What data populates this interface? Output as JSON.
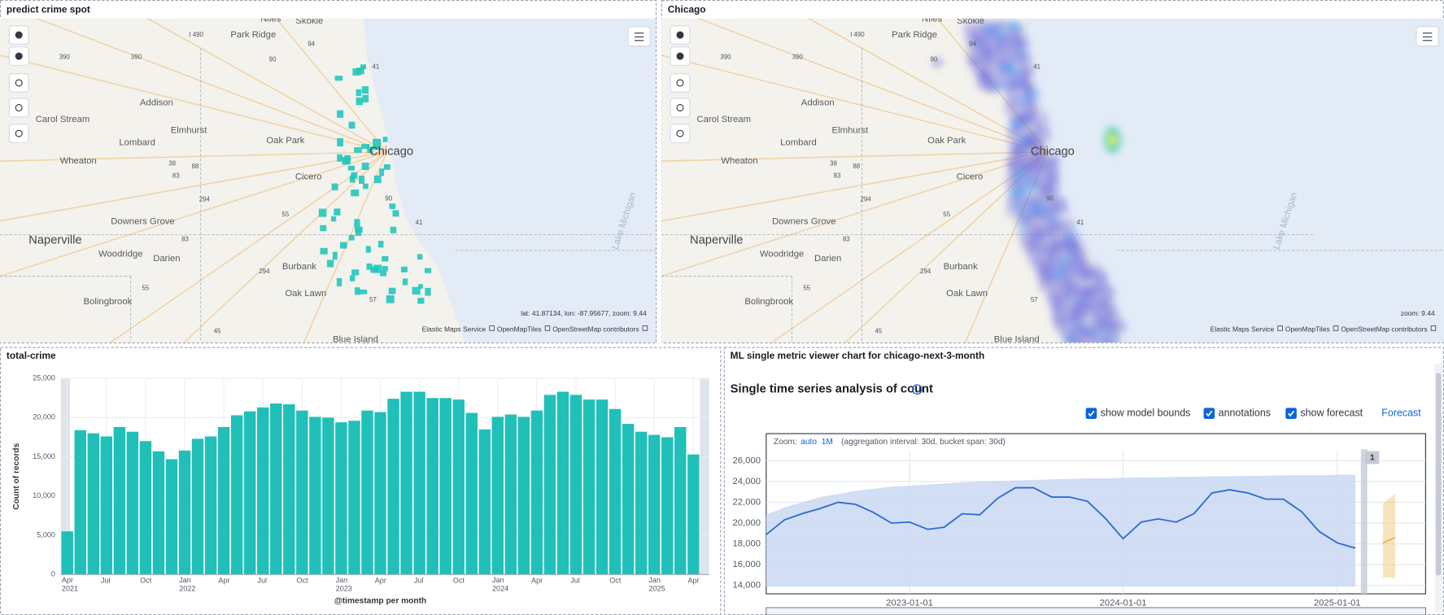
{
  "panels": {
    "map1": {
      "title": "predict crime spot",
      "status": "lat: 41.87134, lon: -87.95677, zoom: 9.44"
    },
    "map2": {
      "title": "Chicago",
      "status": "zoom: 9.44"
    },
    "bar_panel": {
      "title": "total-crime"
    },
    "ml_panel": {
      "title": "ML single metric viewer chart for chicago-next-3-month",
      "heading": "Single time series analysis of count",
      "checkboxes": [
        "show model bounds",
        "annotations",
        "show forecast"
      ],
      "forecast_button": "Forecast",
      "zoom_label": "Zoom:",
      "zoom_options": [
        "auto",
        "1M"
      ],
      "interval_note": "(aggregation interval: 30d, bucket span: 30d)"
    }
  },
  "map": {
    "labels": [
      "Niles",
      "Skokie",
      "I 490",
      "Park Ridge",
      "94",
      "390",
      "390",
      "90",
      "41",
      "Addison",
      "Carol Stream",
      "Elmhurst",
      "Lombard",
      "Oak Park",
      "Chicago",
      "Wheaton",
      "38",
      "88",
      "Cicero",
      "83",
      "294",
      "90",
      "55",
      "Downers Grove",
      "41",
      "Naperville",
      "Woodridge",
      "Darien",
      "83",
      "Burbank",
      "294",
      "Lake Michigan",
      "55",
      "Oak Lawn",
      "Bolingbrook",
      "57",
      "45",
      "Blue Island"
    ],
    "attribution": [
      "Elastic Maps Service",
      "OpenMapTiles",
      "OpenStreetMap contributors"
    ]
  },
  "chart_data": [
    {
      "type": "bar",
      "x_label": "@timestamp per month",
      "y_label": "Count of records",
      "color": "#20c0b8",
      "grid": true,
      "categories": [
        "Apr 2021",
        null,
        null,
        "Jul",
        null,
        null,
        "Oct",
        null,
        null,
        "Jan 2022",
        null,
        null,
        "Apr",
        null,
        null,
        "Jul",
        null,
        null,
        "Oct",
        null,
        null,
        "Jan 2023",
        null,
        null,
        "Apr",
        null,
        null,
        "Jul",
        null,
        null,
        "Oct",
        null,
        null,
        "Jan 2024",
        null,
        null,
        "Apr",
        null,
        null,
        "Jul",
        null,
        null,
        "Oct",
        null,
        null,
        "Jan 2025",
        null,
        null,
        "Apr"
      ],
      "values": [
        5500,
        18400,
        18000,
        17600,
        18800,
        18200,
        17000,
        15700,
        14700,
        15800,
        17300,
        17600,
        18800,
        20300,
        20800,
        21300,
        21800,
        21700,
        20900,
        20100,
        20000,
        19400,
        19600,
        20900,
        20700,
        22400,
        23300,
        23300,
        22500,
        22500,
        22300,
        20600,
        18500,
        20100,
        20400,
        20100,
        20900,
        22900,
        23300,
        22900,
        22300,
        22300,
        21100,
        19200,
        18200,
        17800,
        17500,
        18800,
        15300
      ],
      "ylim": [
        0,
        25000
      ],
      "yticks": [
        0,
        {
          "value": 5000,
          "label": "5,000"
        },
        {
          "value": 10000,
          "label": "10,000"
        },
        {
          "value": 15000,
          "label": "15,000"
        },
        {
          "value": 20000,
          "label": "20,000"
        },
        {
          "value": 25000,
          "label": "25,000"
        }
      ]
    },
    {
      "type": "line",
      "color": "#2f6bd1",
      "band_color": "#c9d8f2",
      "grid": true,
      "x": [
        "2022-05-01",
        "2022-06-01",
        "2022-07-01",
        "2022-08-01",
        "2022-09-01",
        "2022-10-01",
        "2022-11-01",
        "2022-12-01",
        "2023-01-01",
        "2023-02-01",
        "2023-03-01",
        "2023-04-01",
        "2023-05-01",
        "2023-06-01",
        "2023-07-01",
        "2023-08-01",
        "2023-09-01",
        "2023-10-01",
        "2023-11-01",
        "2023-12-01",
        "2024-01-01",
        "2024-02-01",
        "2024-03-01",
        "2024-04-01",
        "2024-05-01",
        "2024-06-01",
        "2024-07-01",
        "2024-08-01",
        "2024-09-01",
        "2024-10-01",
        "2024-11-01",
        "2024-12-01",
        "2025-01-01",
        "2025-02-01"
      ],
      "values": [
        18900,
        20300,
        20900,
        21400,
        22000,
        21800,
        21000,
        20000,
        20100,
        19400,
        19600,
        20900,
        20800,
        22400,
        23400,
        23400,
        22500,
        22500,
        22100,
        20500,
        18500,
        20100,
        20400,
        20100,
        20900,
        22900,
        23200,
        22900,
        22300,
        22300,
        21100,
        19200,
        18100,
        17600
      ],
      "upper": [
        20800,
        21500,
        22000,
        22500,
        22800,
        23100,
        23300,
        23500,
        23600,
        23700,
        23800,
        23900,
        24000,
        24050,
        24100,
        24150,
        24200,
        24250,
        24300,
        24300,
        24350,
        24400,
        24400,
        24450,
        24450,
        24500,
        24500,
        24550,
        24550,
        24600,
        24600,
        24600,
        24650,
        24650
      ],
      "lower": [
        13900,
        13900,
        13900,
        13900,
        13900,
        13900,
        13900,
        13900,
        13900,
        13900,
        13900,
        13900,
        13900,
        13900,
        13900,
        13900,
        13900,
        13900,
        13900,
        13900,
        13900,
        13900,
        13900,
        13900,
        13900,
        13900,
        13900,
        13900,
        13900,
        13900,
        13900,
        13900,
        13900,
        13900
      ],
      "forecast": {
        "color": "#f2c66d",
        "x": [
          "2025-03-20",
          "2025-04-10"
        ],
        "values": [
          18100,
          18600
        ],
        "upper": [
          21900,
          22800
        ],
        "lower": [
          14800,
          14700
        ]
      },
      "annotations": [
        {
          "label": "1",
          "x": "2025-02-15"
        }
      ],
      "xlim": [
        "2022-05-01",
        "2025-06-01"
      ],
      "xticks": [
        "2023-01-01",
        "2024-01-01",
        "2025-01-01"
      ],
      "ylim": [
        13200,
        28600
      ],
      "yticks": [
        {
          "value": 14000,
          "label": "14,000"
        },
        {
          "value": 16000,
          "label": "16,000"
        },
        {
          "value": 18000,
          "label": "18,000"
        },
        {
          "value": 20000,
          "label": "20,000"
        },
        {
          "value": 22000,
          "label": "22,000"
        },
        {
          "value": 24000,
          "label": "24,000"
        },
        {
          "value": 26000,
          "label": "26,000"
        }
      ]
    }
  ]
}
